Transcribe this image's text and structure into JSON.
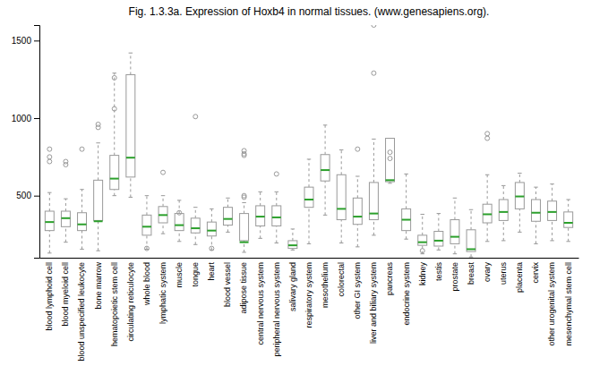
{
  "chart_data": {
    "type": "box",
    "title": "Fig. 1.3.3a. Expression of Hoxb4 in normal tissues. (www.genesapiens.org).",
    "categories": [
      "blood lymphoid cell",
      "blood myeloid cell",
      "blood unspecified leukocyte",
      "bone marrow",
      "hematopoietic stem cell",
      "circulating reticulocyte",
      "whole blood",
      "lymphatic system",
      "muscle",
      "tongue",
      "heart",
      "blood vessel",
      "adipose tissue",
      "central nervous system",
      "peripheral nervous system",
      "salivary gland",
      "respiratory system",
      "mesothelium",
      "colorectal",
      "other GI system",
      "liver and biliary system",
      "pancreas",
      "endocrine system",
      "kidney",
      "testis",
      "prostate",
      "breast",
      "ovary",
      "uterus",
      "placenta",
      "cervix",
      "other urogenital system",
      "mesenchymal stem cell"
    ],
    "values": [
      {
        "whislo": 130,
        "q1": 275,
        "med": 330,
        "q3": 400,
        "whishi": 520,
        "fliers_hi": [
          800,
          750,
          720
        ],
        "fliers_lo": []
      },
      {
        "whislo": 200,
        "q1": 300,
        "med": 355,
        "q3": 400,
        "whishi": 480,
        "fliers_hi": [
          720,
          700
        ],
        "fliers_lo": []
      },
      {
        "whislo": 155,
        "q1": 275,
        "med": 315,
        "q3": 390,
        "whishi": 540,
        "fliers_hi": [
          800
        ],
        "fliers_lo": []
      },
      {
        "whislo": 145,
        "q1": 340,
        "med": 335,
        "q3": 600,
        "whishi": 840,
        "fliers_hi": [
          960,
          940
        ],
        "fliers_lo": []
      },
      {
        "whislo": 500,
        "q1": 540,
        "med": 610,
        "q3": 760,
        "whishi": 1290,
        "fliers_hi": [
          1260,
          1060
        ],
        "fliers_lo": []
      },
      {
        "whislo": 490,
        "q1": 620,
        "med": 745,
        "q3": 1280,
        "whishi": 1420,
        "fliers_hi": [],
        "fliers_lo": []
      },
      {
        "whislo": 155,
        "q1": 245,
        "med": 300,
        "q3": 375,
        "whishi": 500,
        "fliers_hi": [],
        "fliers_lo": [
          160
        ]
      },
      {
        "whislo": 255,
        "q1": 325,
        "med": 375,
        "q3": 430,
        "whishi": 500,
        "fliers_hi": [
          650
        ],
        "fliers_lo": []
      },
      {
        "whislo": 205,
        "q1": 275,
        "med": 310,
        "q3": 385,
        "whishi": 470,
        "fliers_hi": [
          390
        ],
        "fliers_lo": []
      },
      {
        "whislo": 185,
        "q1": 260,
        "med": 290,
        "q3": 355,
        "whishi": 425,
        "fliers_hi": [
          1010
        ],
        "fliers_lo": []
      },
      {
        "whislo": 150,
        "q1": 240,
        "med": 275,
        "q3": 330,
        "whishi": 415,
        "fliers_hi": [],
        "fliers_lo": [
          160
        ]
      },
      {
        "whislo": 265,
        "q1": 310,
        "med": 350,
        "q3": 425,
        "whishi": 485,
        "fliers_hi": [],
        "fliers_lo": []
      },
      {
        "whislo": 135,
        "q1": 210,
        "med": 200,
        "q3": 385,
        "whishi": 455,
        "fliers_hi": [
          790,
          770,
          760,
          490,
          500
        ],
        "fliers_lo": []
      },
      {
        "whislo": 225,
        "q1": 305,
        "med": 365,
        "q3": 435,
        "whishi": 525,
        "fliers_hi": [],
        "fliers_lo": []
      },
      {
        "whislo": 195,
        "q1": 305,
        "med": 360,
        "q3": 435,
        "whishi": 525,
        "fliers_hi": [
          640
        ],
        "fliers_lo": []
      },
      {
        "whislo": 150,
        "q1": 160,
        "med": 180,
        "q3": 210,
        "whishi": 285,
        "fliers_hi": [],
        "fliers_lo": []
      },
      {
        "whislo": 190,
        "q1": 425,
        "med": 475,
        "q3": 555,
        "whishi": 735,
        "fliers_hi": [],
        "fliers_lo": []
      },
      {
        "whislo": 375,
        "q1": 595,
        "med": 665,
        "q3": 765,
        "whishi": 955,
        "fliers_hi": [],
        "fliers_lo": []
      },
      {
        "whislo": 195,
        "q1": 345,
        "med": 415,
        "q3": 635,
        "whishi": 795,
        "fliers_hi": [],
        "fliers_lo": []
      },
      {
        "whislo": 170,
        "q1": 315,
        "med": 365,
        "q3": 485,
        "whishi": 625,
        "fliers_hi": [
          800
        ],
        "fliers_lo": []
      },
      {
        "whislo": 245,
        "q1": 345,
        "med": 385,
        "q3": 585,
        "whishi": 865,
        "fliers_hi": [
          1290,
          1600
        ],
        "fliers_lo": []
      },
      {
        "whislo": 580,
        "q1": 590,
        "med": 600,
        "q3": 870,
        "whishi": 870,
        "fliers_hi": [
          780,
          740
        ],
        "fliers_lo": []
      },
      {
        "whislo": 220,
        "q1": 275,
        "med": 345,
        "q3": 415,
        "whishi": 640,
        "fliers_hi": [],
        "fliers_lo": []
      },
      {
        "whislo": 125,
        "q1": 180,
        "med": 200,
        "q3": 245,
        "whishi": 380,
        "fliers_hi": [],
        "fliers_lo": [
          145
        ]
      },
      {
        "whislo": 150,
        "q1": 175,
        "med": 210,
        "q3": 270,
        "whishi": 385,
        "fliers_hi": [],
        "fliers_lo": []
      },
      {
        "whislo": 125,
        "q1": 190,
        "med": 235,
        "q3": 345,
        "whishi": 485,
        "fliers_hi": [],
        "fliers_lo": []
      },
      {
        "whislo": 105,
        "q1": 140,
        "med": 155,
        "q3": 280,
        "whishi": 410,
        "fliers_hi": [],
        "fliers_lo": []
      },
      {
        "whislo": 205,
        "q1": 325,
        "med": 380,
        "q3": 445,
        "whishi": 635,
        "fliers_hi": [
          900,
          870
        ],
        "fliers_lo": []
      },
      {
        "whislo": 210,
        "q1": 340,
        "med": 395,
        "q3": 475,
        "whishi": 565,
        "fliers_hi": [],
        "fliers_lo": []
      },
      {
        "whislo": 265,
        "q1": 415,
        "med": 495,
        "q3": 585,
        "whishi": 645,
        "fliers_hi": [],
        "fliers_lo": []
      },
      {
        "whislo": 190,
        "q1": 335,
        "med": 390,
        "q3": 475,
        "whishi": 555,
        "fliers_hi": [],
        "fliers_lo": []
      },
      {
        "whislo": 210,
        "q1": 340,
        "med": 395,
        "q3": 465,
        "whishi": 575,
        "fliers_hi": [],
        "fliers_lo": []
      },
      {
        "whislo": 205,
        "q1": 295,
        "med": 325,
        "q3": 395,
        "whishi": 475,
        "fliers_hi": [],
        "fliers_lo": []
      }
    ],
    "color": "#999999",
    "ylim": [
      100,
      1600
    ],
    "yticks": [
      500,
      1000,
      1500
    ]
  }
}
